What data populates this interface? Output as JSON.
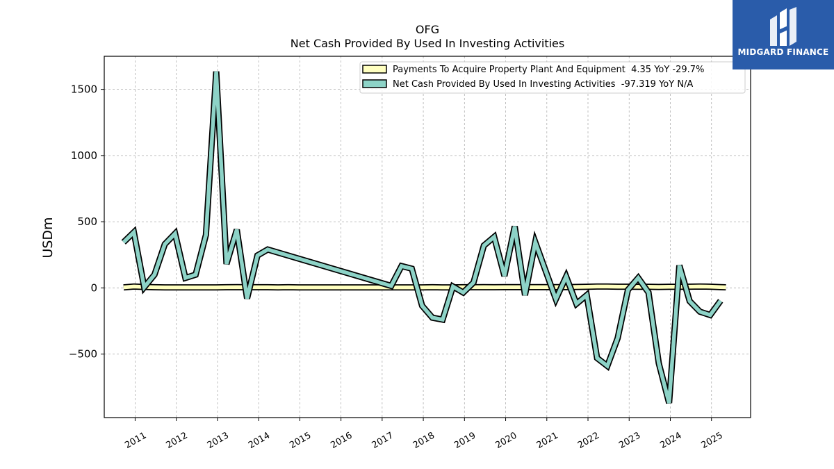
{
  "chart_data": {
    "type": "line",
    "title": "OFG",
    "subtitle": "Net Cash Provided By Used In Investing Activities",
    "xlabel": "",
    "ylabel": "USDm",
    "ylim": [
      -980,
      1750
    ],
    "xlim": [
      2010.25,
      2025.95
    ],
    "yticks": [
      -500,
      0,
      500,
      1000,
      1500
    ],
    "yticklabels": [
      "−500",
      "0",
      "500",
      "1000",
      "1500"
    ],
    "xticks": [
      2011,
      2012,
      2013,
      2014,
      2015,
      2016,
      2017,
      2018,
      2019,
      2020,
      2021,
      2022,
      2023,
      2024,
      2025
    ],
    "xticklabels": [
      "2011",
      "2012",
      "2013",
      "2014",
      "2015",
      "2016",
      "2017",
      "2018",
      "2019",
      "2020",
      "2021",
      "2022",
      "2023",
      "2024",
      "2025"
    ],
    "grid": true,
    "legend_position": "top-right",
    "series": [
      {
        "name": "Payments To Acquire Property Plant And Equipment  4.35 YoY -29.7%",
        "color": "#ffffc0",
        "x": [
          2010.72,
          2010.97,
          2011.22,
          2011.47,
          2011.72,
          2011.97,
          2012.22,
          2012.47,
          2012.72,
          2012.97,
          2013.22,
          2013.47,
          2013.72,
          2013.97,
          2014.22,
          2014.47,
          2014.72,
          2014.97,
          2015.22,
          2015.47,
          2015.72,
          2015.97,
          2016.22,
          2016.47,
          2016.72,
          2016.97,
          2017.22,
          2017.47,
          2017.72,
          2017.97,
          2018.22,
          2018.47,
          2018.72,
          2018.97,
          2019.22,
          2019.47,
          2019.72,
          2019.97,
          2020.22,
          2020.47,
          2020.72,
          2020.97,
          2021.22,
          2021.47,
          2021.72,
          2021.97,
          2022.22,
          2022.47,
          2022.72,
          2022.97,
          2023.22,
          2023.47,
          2023.72,
          2023.97,
          2024.22,
          2024.47,
          2024.72,
          2024.97,
          2025.22,
          2025.35
        ],
        "values": [
          4,
          10,
          7,
          5,
          4,
          4,
          4,
          4,
          4,
          4,
          5,
          6,
          5,
          5,
          5,
          4,
          5,
          4,
          4,
          4,
          4,
          4,
          4,
          4,
          4,
          4,
          4,
          4,
          4,
          4,
          5,
          4,
          4,
          5,
          5,
          6,
          5,
          6,
          6,
          6,
          6,
          6,
          6,
          6,
          7,
          8,
          10,
          10,
          9,
          9,
          8,
          8,
          7,
          8,
          8,
          9,
          10,
          9,
          6,
          4.35
        ]
      },
      {
        "name": "Net Cash Provided By Used In Investing Activities  -97.319 YoY N/A",
        "color": "#8dd3c7",
        "x": [
          2010.72,
          2010.97,
          2011.22,
          2011.47,
          2011.72,
          2011.97,
          2012.22,
          2012.47,
          2012.72,
          2012.97,
          2013.22,
          2013.47,
          2013.72,
          2013.97,
          2014.22,
          2017.22,
          2017.47,
          2017.72,
          2017.97,
          2018.22,
          2018.47,
          2018.72,
          2018.97,
          2019.22,
          2019.47,
          2019.72,
          2019.97,
          2020.22,
          2020.47,
          2020.72,
          2020.97,
          2021.22,
          2021.47,
          2021.72,
          2021.97,
          2022.22,
          2022.47,
          2022.72,
          2022.97,
          2023.22,
          2023.47,
          2023.72,
          2023.97,
          2024.22,
          2024.47,
          2024.72,
          2024.97,
          2025.22
        ],
        "values": [
          345,
          420,
          5,
          100,
          330,
          410,
          75,
          100,
          400,
          1635,
          180,
          440,
          -80,
          245,
          290,
          15,
          165,
          145,
          -135,
          -225,
          -240,
          10,
          -35,
          40,
          320,
          385,
          90,
          465,
          -55,
          345,
          130,
          -85,
          85,
          -120,
          -55,
          -530,
          -590,
          -380,
          -15,
          75,
          -35,
          -570,
          -870,
          170,
          -100,
          -180,
          -205,
          -97.319
        ]
      }
    ]
  },
  "watermark": {
    "brand": "MIDGARD FINANCE"
  }
}
